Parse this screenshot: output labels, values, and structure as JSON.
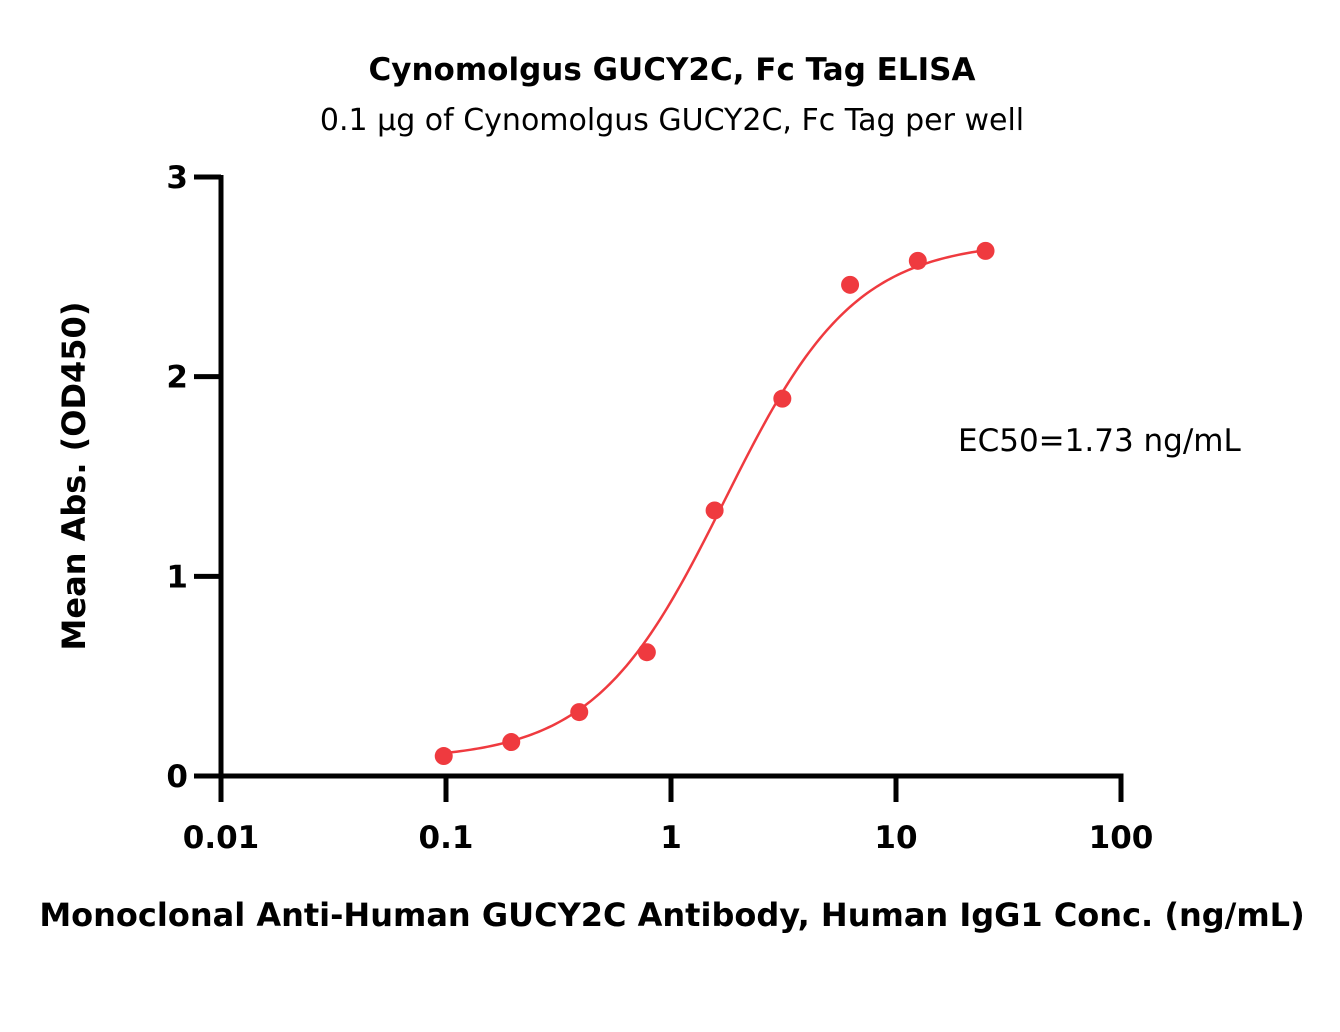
{
  "chart_data": {
    "type": "scatter",
    "title": "Cynomolgus GUCY2C, Fc Tag ELISA",
    "subtitle": "0.1 µg of Cynomolgus GUCY2C, Fc Tag per well",
    "xlabel": "Monoclonal Anti-Human GUCY2C Antibody, Human IgG1 Conc. (ng/mL)",
    "ylabel": "Mean Abs. (OD450)",
    "xscale": "log",
    "xlim": [
      0.01,
      100
    ],
    "ylim": [
      0,
      3
    ],
    "xticks": [
      0.01,
      0.1,
      1,
      10,
      100
    ],
    "xtick_labels": [
      "0.01",
      "0.1",
      "1",
      "10",
      "100"
    ],
    "yticks": [
      0,
      1,
      2,
      3
    ],
    "ytick_labels": [
      "0",
      "1",
      "2",
      "3"
    ],
    "grid": false,
    "color": "#ef3a3f",
    "series": [
      {
        "x": [
          0.0977,
          0.195,
          0.391,
          0.781,
          1.5625,
          3.125,
          6.25,
          12.5,
          25
        ],
        "y": [
          0.1,
          0.17,
          0.32,
          0.62,
          1.33,
          1.89,
          2.46,
          2.58,
          2.63
        ]
      }
    ],
    "fit_curve": {
      "model": "4PL",
      "bottom": 0.08,
      "top": 2.68,
      "ec50": 1.73,
      "hill": 1.5,
      "x_range": [
        0.0977,
        25
      ]
    },
    "annotation": "EC50=1.73 ng/mL"
  }
}
